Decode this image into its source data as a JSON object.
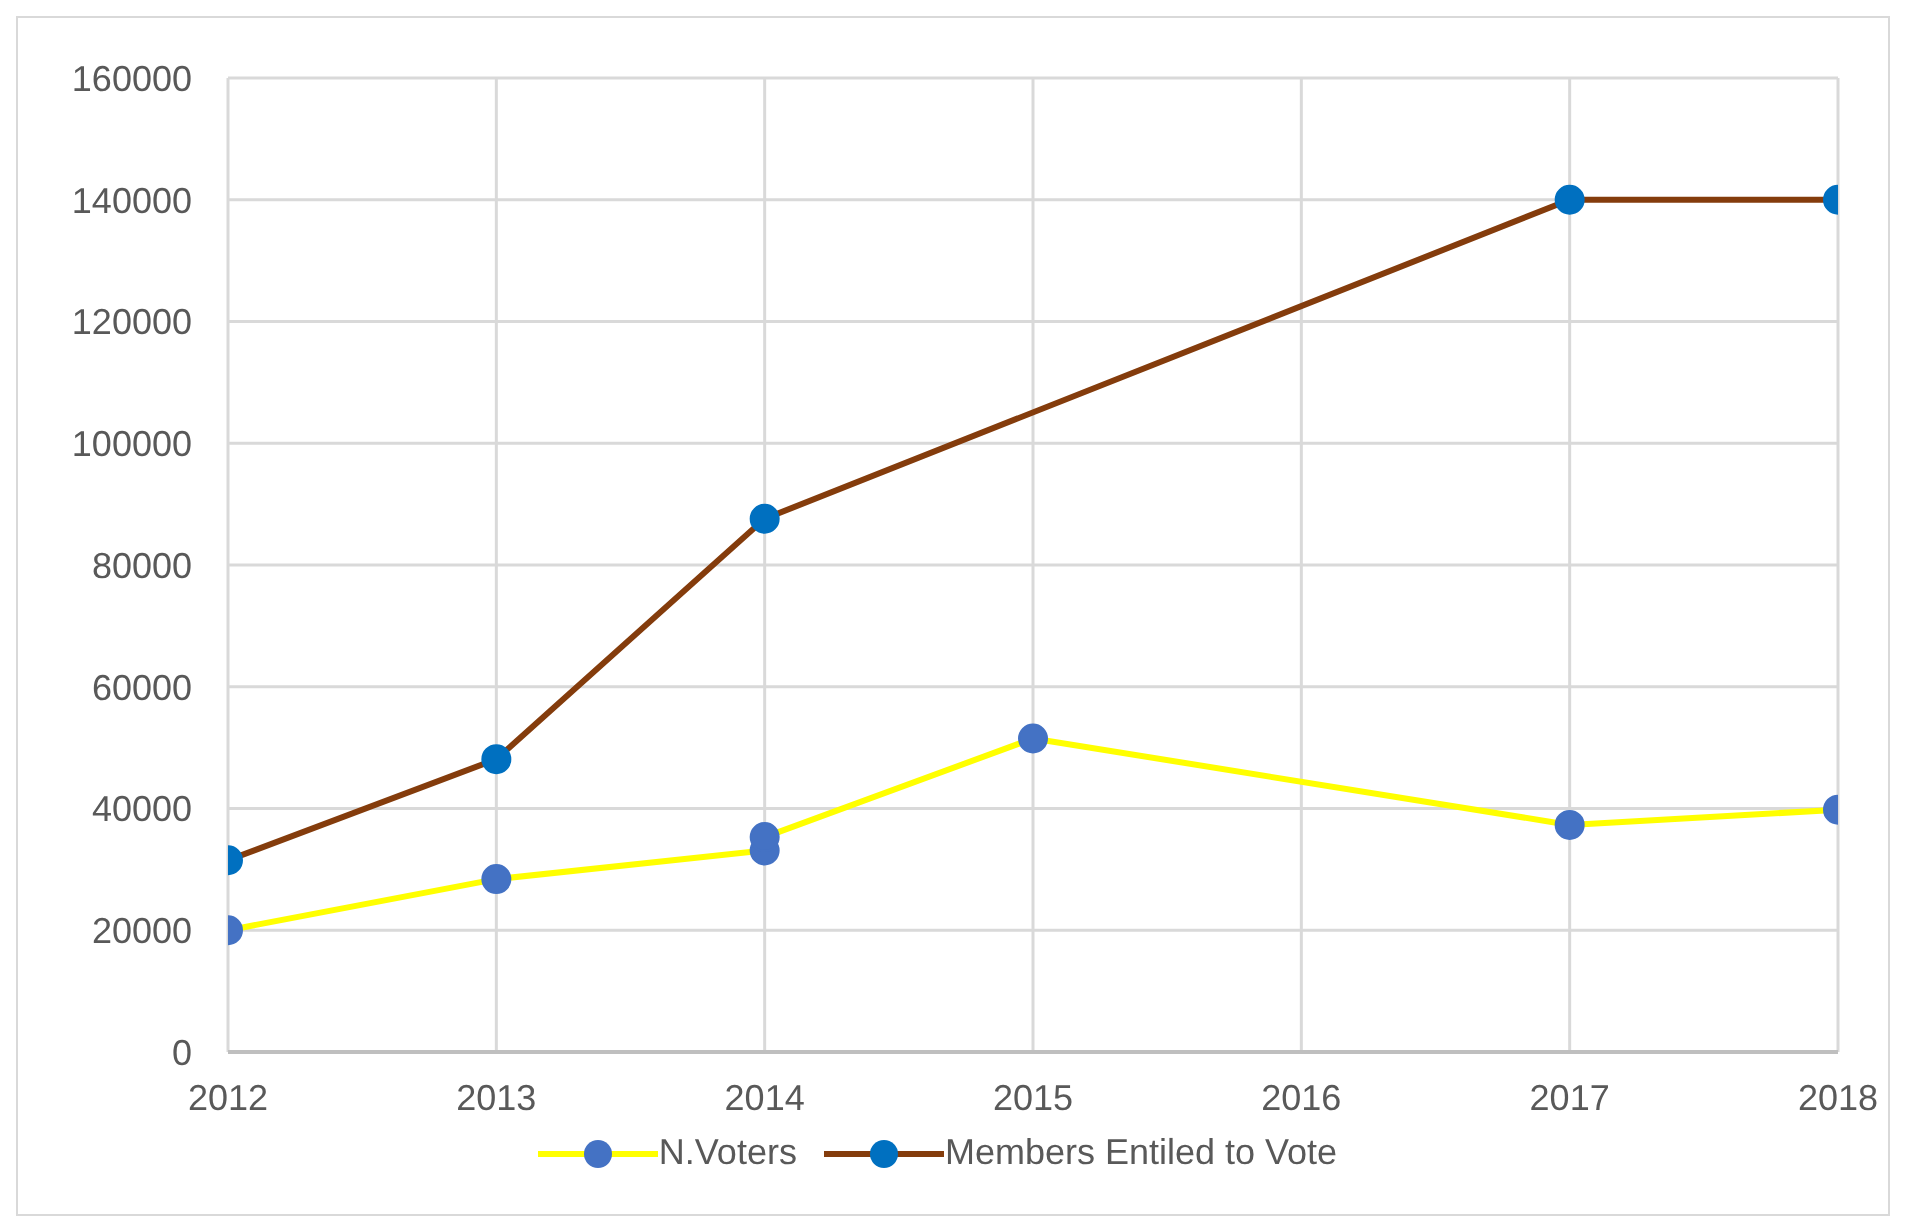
{
  "chart_data": {
    "type": "line",
    "xlim": [
      2012,
      2018
    ],
    "xticks": [
      2012,
      2013,
      2014,
      2015,
      2016,
      2017,
      2018
    ],
    "ylim": [
      0,
      160000
    ],
    "yticks": [
      0,
      20000,
      40000,
      60000,
      80000,
      100000,
      120000,
      140000,
      160000
    ],
    "grid": true,
    "legend": "bottom",
    "marker": "circle",
    "series": [
      {
        "name": "N.Voters",
        "color": "#ffff00",
        "x": [
          2012,
          2013,
          2014,
          2014,
          2015,
          2017,
          2018
        ],
        "values": [
          20000,
          28400,
          33100,
          35300,
          51500,
          37300,
          39800
        ]
      },
      {
        "name": "Members Entiled to Vote",
        "color": "#843c0c",
        "x": [
          2012,
          2013,
          2014,
          2017,
          2018
        ],
        "values": [
          31500,
          48100,
          87600,
          140000,
          140000
        ]
      }
    ]
  }
}
